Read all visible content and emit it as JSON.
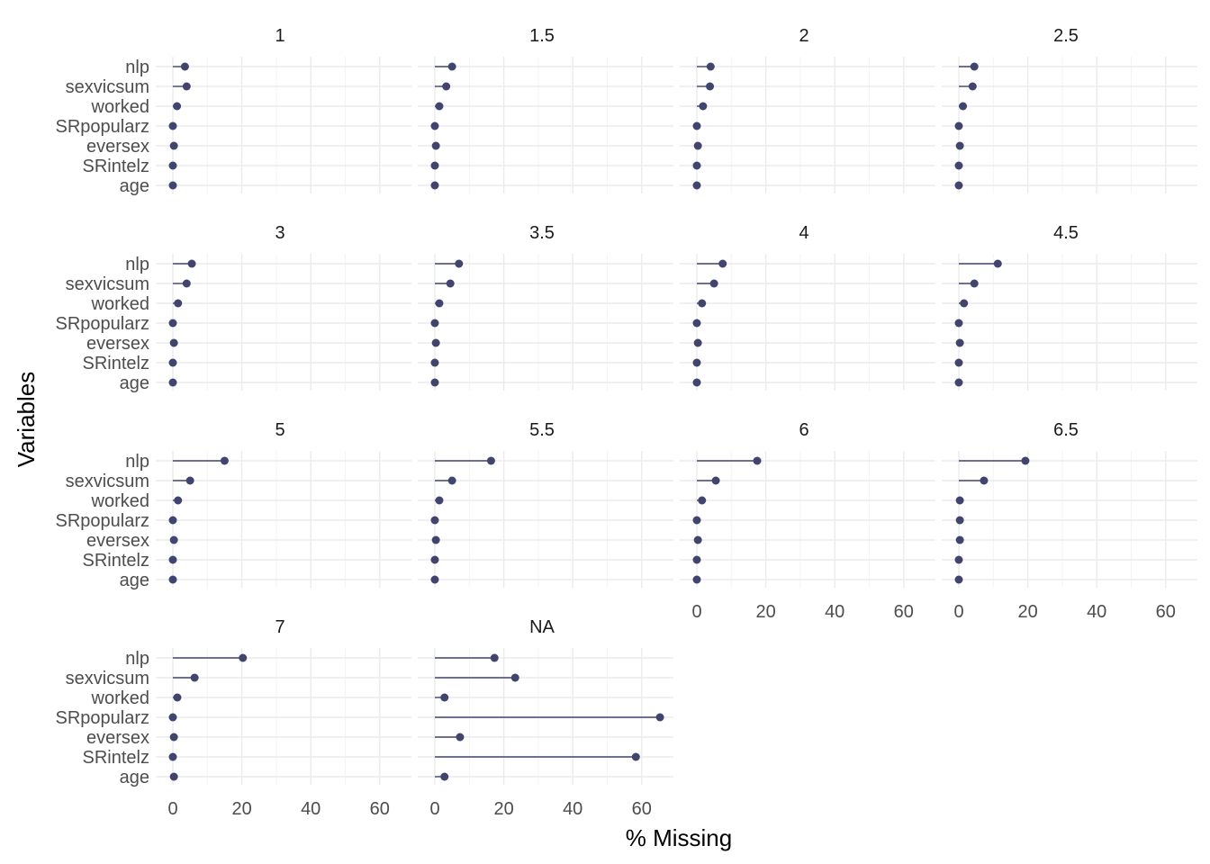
{
  "chart_data": {
    "type": "lollipop",
    "xlabel": "% Missing",
    "ylabel": "Variables",
    "xlim": [
      0,
      68
    ],
    "xticks": [
      0,
      20,
      40,
      60
    ],
    "variables": [
      "nlp",
      "sexvicsum",
      "worked",
      "SRpopularz",
      "eversex",
      "SRintelz",
      "age"
    ],
    "color": "#41456e",
    "grid": true,
    "panels": [
      {
        "label": "1",
        "values": [
          3.5,
          4.0,
          1.2,
          0.0,
          0.3,
          0.0,
          0.0
        ]
      },
      {
        "label": "1.5",
        "values": [
          5.0,
          3.3,
          1.3,
          0.0,
          0.3,
          0.0,
          0.0
        ]
      },
      {
        "label": "2",
        "values": [
          4.0,
          3.8,
          1.8,
          0.0,
          0.3,
          0.0,
          0.0
        ]
      },
      {
        "label": "2.5",
        "values": [
          4.5,
          4.0,
          1.2,
          0.0,
          0.3,
          0.0,
          0.0
        ]
      },
      {
        "label": "3",
        "values": [
          5.5,
          4.0,
          1.5,
          0.0,
          0.3,
          0.0,
          0.0
        ]
      },
      {
        "label": "3.5",
        "values": [
          7.0,
          4.5,
          1.3,
          0.0,
          0.3,
          0.0,
          0.0
        ]
      },
      {
        "label": "4",
        "values": [
          7.5,
          5.0,
          1.5,
          0.0,
          0.3,
          0.0,
          0.0
        ]
      },
      {
        "label": "4.5",
        "values": [
          11.3,
          4.5,
          1.5,
          0.0,
          0.3,
          0.0,
          0.0
        ]
      },
      {
        "label": "5",
        "values": [
          15.0,
          5.0,
          1.5,
          0.0,
          0.3,
          0.0,
          0.0
        ]
      },
      {
        "label": "5.5",
        "values": [
          16.3,
          5.0,
          1.3,
          0.0,
          0.3,
          0.0,
          0.0
        ]
      },
      {
        "label": "6",
        "values": [
          17.5,
          5.5,
          1.5,
          0.0,
          0.3,
          0.0,
          0.0
        ]
      },
      {
        "label": "6.5",
        "values": [
          19.3,
          7.3,
          0.3,
          0.3,
          0.3,
          0.0,
          0.0
        ]
      },
      {
        "label": "7",
        "values": [
          20.3,
          6.3,
          1.3,
          0.0,
          0.3,
          0.0,
          0.3
        ]
      },
      {
        "label": "NA",
        "values": [
          17.3,
          23.3,
          2.8,
          65.3,
          7.3,
          58.3,
          2.8
        ]
      }
    ]
  }
}
